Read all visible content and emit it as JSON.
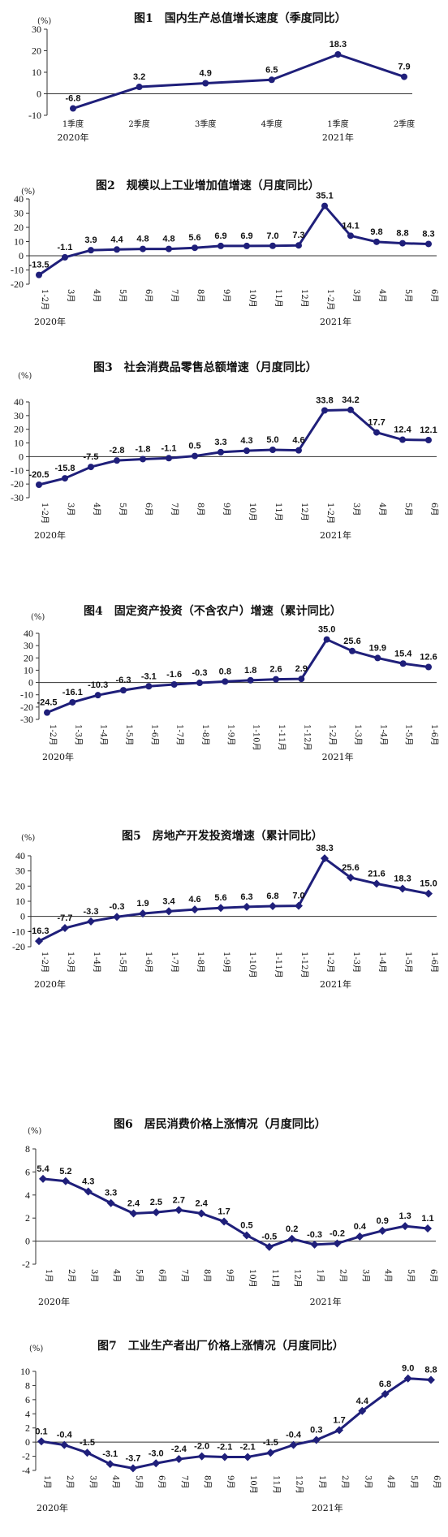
{
  "chart_data": [
    {
      "type": "line",
      "title": "图1　国内生产总值增长速度（季度同比）",
      "unit": "(%)",
      "categories": [
        "1季度",
        "2季度",
        "3季度",
        "4季度",
        "1季度",
        "2季度"
      ],
      "year_labels": [
        {
          "at": 0,
          "text": "2020年"
        },
        {
          "at": 4,
          "text": "2021年"
        }
      ],
      "values": [
        -6.8,
        3.2,
        4.9,
        6.5,
        18.3,
        7.9
      ],
      "labels": [
        "-6.8",
        "3.2",
        "4.9",
        "6.5",
        "18.3",
        "7.9"
      ],
      "ylim": [
        -10,
        30
      ],
      "yticks": [
        -10,
        0,
        10,
        20,
        30
      ],
      "rotated_x": false,
      "marker": "dot"
    },
    {
      "type": "line",
      "title": "图2　规模以上工业增加值增速（月度同比）",
      "unit": "(%)",
      "categories": [
        "1-2月",
        "3月",
        "4月",
        "5月",
        "6月",
        "7月",
        "8月",
        "9月",
        "10月",
        "11月",
        "12月",
        "1-2月",
        "3月",
        "4月",
        "5月",
        "6月"
      ],
      "year_labels": [
        {
          "at": 0,
          "text": "2020年"
        },
        {
          "at": 11,
          "text": "2021年"
        }
      ],
      "values": [
        -13.5,
        -1.1,
        3.9,
        4.4,
        4.8,
        4.8,
        5.6,
        6.9,
        6.9,
        7.0,
        7.3,
        35.1,
        14.1,
        9.8,
        8.8,
        8.3
      ],
      "labels": [
        "-13.5",
        "-1.1",
        "3.9",
        "4.4",
        "4.8",
        "4.8",
        "5.6",
        "6.9",
        "6.9",
        "7.0",
        "7.3",
        "35.1",
        "14.1",
        "9.8",
        "8.8",
        "8.3"
      ],
      "ylim": [
        -20,
        40
      ],
      "yticks": [
        -20,
        -10,
        0,
        10,
        20,
        30,
        40
      ],
      "rotated_x": true,
      "marker": "dot"
    },
    {
      "type": "line",
      "title": "图3　社会消费品零售总额增速（月度同比）",
      "unit": "(%)",
      "categories": [
        "1-2月",
        "3月",
        "4月",
        "5月",
        "6月",
        "7月",
        "8月",
        "9月",
        "10月",
        "11月",
        "12月",
        "1-2月",
        "3月",
        "4月",
        "5月",
        "6月"
      ],
      "year_labels": [
        {
          "at": 0,
          "text": "2020年"
        },
        {
          "at": 11,
          "text": "2021年"
        }
      ],
      "values": [
        -20.5,
        -15.8,
        -7.5,
        -2.8,
        -1.8,
        -1.1,
        0.5,
        3.3,
        4.3,
        5.0,
        4.6,
        33.8,
        34.2,
        17.7,
        12.4,
        12.1
      ],
      "labels": [
        "-20.5",
        "-15.8",
        "-7.5",
        "-2.8",
        "-1.8",
        "-1.1",
        "0.5",
        "3.3",
        "4.3",
        "5.0",
        "4.6",
        "33.8",
        "34.2",
        "17.7",
        "12.4",
        "12.1"
      ],
      "ylim": [
        -30,
        40
      ],
      "yticks": [
        -30,
        -20,
        -10,
        0,
        10,
        20,
        30,
        40
      ],
      "rotated_x": true,
      "marker": "dot"
    },
    {
      "type": "line",
      "title": "图4　固定资产投资（不含农户）增速（累计同比）",
      "unit": "(%)",
      "categories": [
        "1-2月",
        "1-3月",
        "1-4月",
        "1-5月",
        "1-6月",
        "1-7月",
        "1-8月",
        "1-9月",
        "1-10月",
        "1-11月",
        "1-12月",
        "1-2月",
        "1-3月",
        "1-4月",
        "1-5月",
        "1-6月"
      ],
      "year_labels": [
        {
          "at": 0,
          "text": "2020年"
        },
        {
          "at": 11,
          "text": "2021年"
        }
      ],
      "values": [
        -24.5,
        -16.1,
        -10.3,
        -6.3,
        -3.1,
        -1.6,
        -0.3,
        0.8,
        1.8,
        2.6,
        2.9,
        35.0,
        25.6,
        19.9,
        15.4,
        12.6
      ],
      "labels": [
        "-24.5",
        "-16.1",
        "-10.3",
        "-6.3",
        "-3.1",
        "-1.6",
        "-0.3",
        "0.8",
        "1.8",
        "2.6",
        "2.9",
        "35.0",
        "25.6",
        "19.9",
        "15.4",
        "12.6"
      ],
      "ylim": [
        -30,
        40
      ],
      "yticks": [
        -30,
        -20,
        -10,
        0,
        10,
        20,
        30,
        40
      ],
      "rotated_x": true,
      "marker": "dot"
    },
    {
      "type": "line",
      "title": "图5　房地产开发投资增速（累计同比）",
      "unit": "(%)",
      "categories": [
        "1-2月",
        "1-3月",
        "1-4月",
        "1-5月",
        "1-6月",
        "1-7月",
        "1-8月",
        "1-9月",
        "1-10月",
        "1-11月",
        "1-12月",
        "1-2月",
        "1-3月",
        "1-4月",
        "1-5月",
        "1-6月"
      ],
      "year_labels": [
        {
          "at": 0,
          "text": "2020年"
        },
        {
          "at": 11,
          "text": "2021年"
        }
      ],
      "values": [
        -16.3,
        -7.7,
        -3.3,
        -0.3,
        1.9,
        3.4,
        4.6,
        5.6,
        6.3,
        6.8,
        7.0,
        38.3,
        25.6,
        21.6,
        18.3,
        15.0
      ],
      "labels": [
        "-16.3",
        "-7.7",
        "-3.3",
        "-0.3",
        "1.9",
        "3.4",
        "4.6",
        "5.6",
        "6.3",
        "6.8",
        "7.0",
        "38.3",
        "25.6",
        "21.6",
        "18.3",
        "15.0"
      ],
      "ylim": [
        -20,
        40
      ],
      "yticks": [
        -20,
        -10,
        0,
        10,
        20,
        30,
        40
      ],
      "rotated_x": true,
      "marker": "diamond"
    },
    {
      "type": "line",
      "title": "图6　居民消费价格上涨情况（月度同比）",
      "unit": "(%)",
      "categories": [
        "1月",
        "2月",
        "3月",
        "4月",
        "5月",
        "6月",
        "7月",
        "8月",
        "9月",
        "10月",
        "11月",
        "12月",
        "1月",
        "2月",
        "3月",
        "4月",
        "5月",
        "6月"
      ],
      "year_labels": [
        {
          "at": 0,
          "text": "2020年"
        },
        {
          "at": 12,
          "text": "2021年"
        }
      ],
      "values": [
        5.4,
        5.2,
        4.3,
        3.3,
        2.4,
        2.5,
        2.7,
        2.4,
        1.7,
        0.5,
        -0.5,
        0.2,
        -0.3,
        -0.2,
        0.4,
        0.9,
        1.3,
        1.1
      ],
      "labels": [
        "5.4",
        "5.2",
        "4.3",
        "3.3",
        "2.4",
        "2.5",
        "2.7",
        "2.4",
        "1.7",
        "0.5",
        "-0.5",
        "0.2",
        "-0.3",
        "-0.2",
        "0.4",
        "0.9",
        "1.3",
        "1.1"
      ],
      "ylim": [
        -2,
        8
      ],
      "yticks": [
        -2,
        0,
        2,
        4,
        6,
        8
      ],
      "rotated_x": true,
      "marker": "diamond"
    },
    {
      "type": "line",
      "title": "图7　工业生产者出厂价格上涨情况（月度同比）",
      "unit": "(%)",
      "categories": [
        "1月",
        "2月",
        "3月",
        "4月",
        "5月",
        "6月",
        "7月",
        "8月",
        "9月",
        "10月",
        "11月",
        "12月",
        "1月",
        "2月",
        "3月",
        "4月",
        "5月",
        "6月"
      ],
      "year_labels": [
        {
          "at": 0,
          "text": "2020年"
        },
        {
          "at": 12,
          "text": "2021年"
        }
      ],
      "values": [
        0.1,
        -0.4,
        -1.5,
        -3.1,
        -3.7,
        -3.0,
        -2.4,
        -2.0,
        -2.1,
        -2.1,
        -1.5,
        -0.4,
        0.3,
        1.7,
        4.4,
        6.8,
        9.0,
        8.8
      ],
      "labels": [
        "0.1",
        "-0.4",
        "-1.5",
        "-3.1",
        "-3.7",
        "-3.0",
        "-2.4",
        "-2.0",
        "-2.1",
        "-2.1",
        "-1.5",
        "-0.4",
        "0.3",
        "1.7",
        "4.4",
        "6.8",
        "9.0",
        "8.8"
      ],
      "ylim": [
        -4,
        10
      ],
      "yticks": [
        -4,
        -2,
        0,
        2,
        4,
        6,
        8,
        10
      ],
      "rotated_x": true,
      "marker": "diamond"
    }
  ]
}
